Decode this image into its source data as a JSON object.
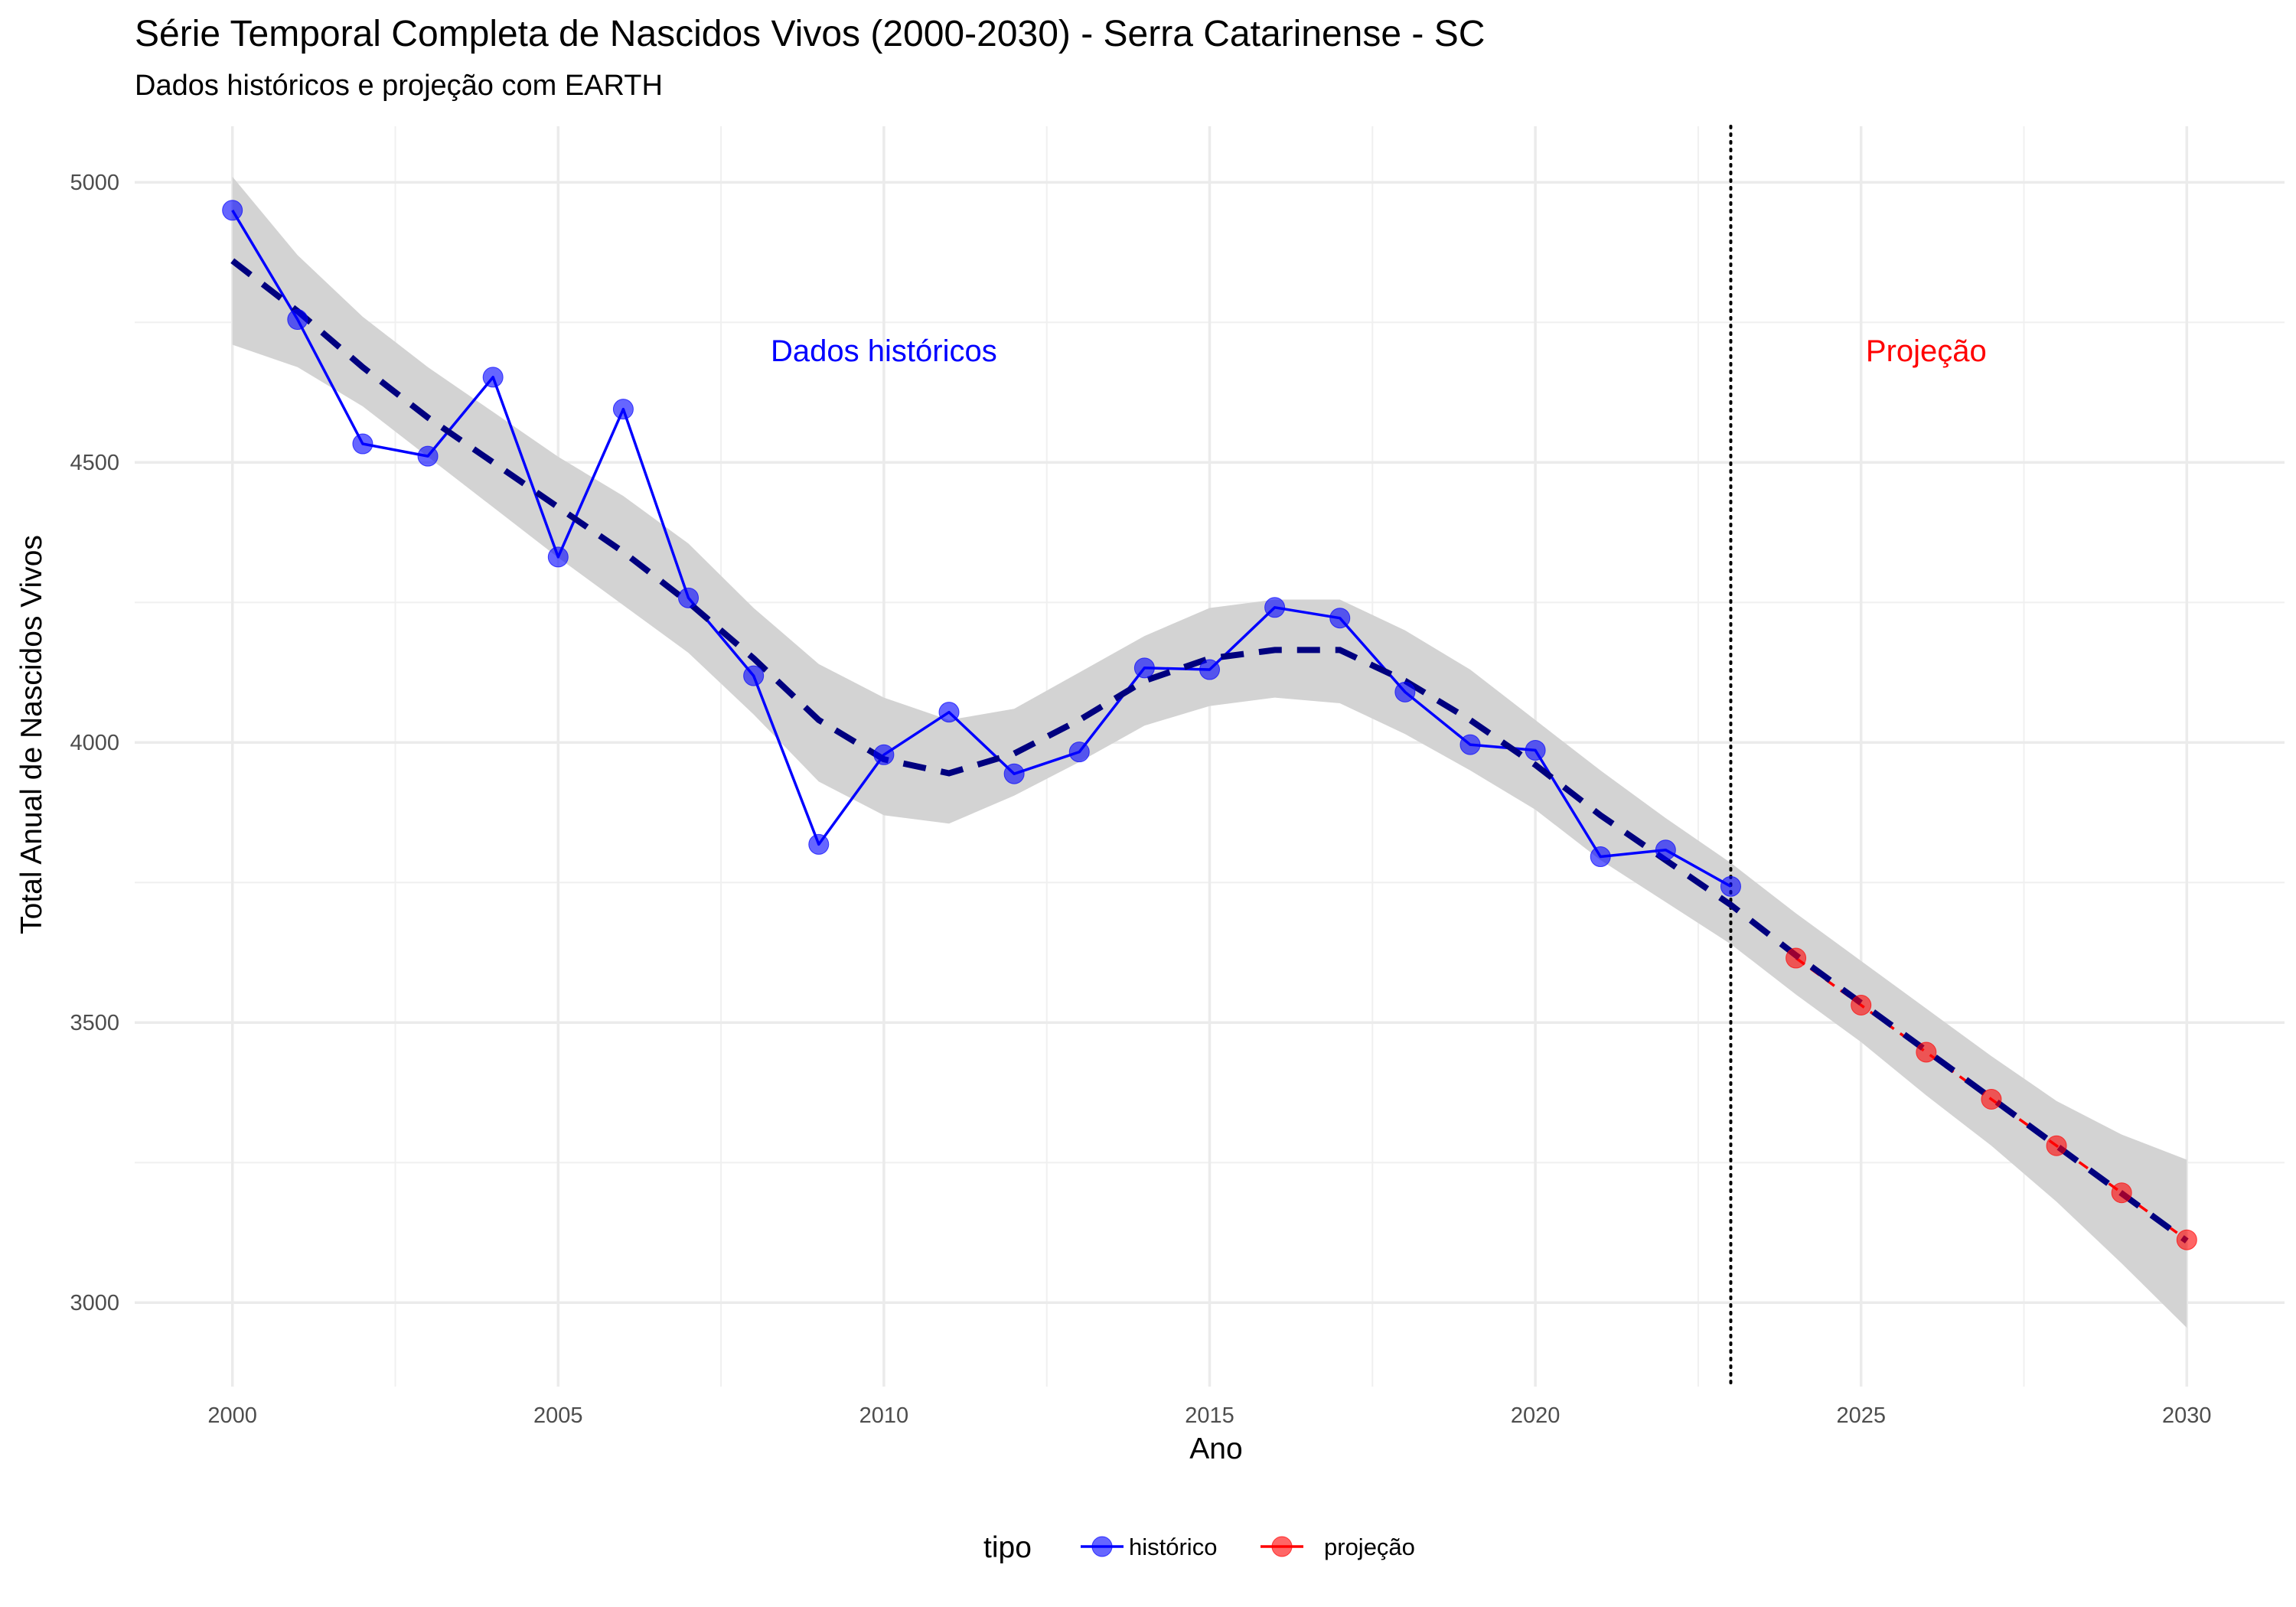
{
  "chart_data": {
    "type": "line",
    "title": "Série Temporal Completa de Nascidos Vivos (2000-2030) -  Serra Catarinense - SC",
    "subtitle": "Dados históricos e projeção com EARTH",
    "xlabel": "Ano",
    "ylabel": "Total Anual de Nascidos Vivos",
    "xlim": [
      1998.5,
      2031.5
    ],
    "ylim": [
      2850,
      5100
    ],
    "x_ticks": [
      2000,
      2005,
      2010,
      2015,
      2020,
      2025,
      2030
    ],
    "y_ticks": [
      3000,
      3500,
      4000,
      4500,
      5000
    ],
    "grid": true,
    "legend": {
      "title": "tipo",
      "position": "bottom",
      "entries": [
        {
          "label": "histórico",
          "color": "#0000ff"
        },
        {
          "label": "projeção",
          "color": "#ff0000"
        }
      ]
    },
    "series": [
      {
        "name": "histórico",
        "color": "#0000ff",
        "x": [
          2000,
          2001,
          2002,
          2003,
          2004,
          2005,
          2006,
          2007,
          2008,
          2009,
          2010,
          2011,
          2012,
          2013,
          2014,
          2015,
          2016,
          2017,
          2018,
          2019,
          2020,
          2021,
          2022,
          2023
        ],
        "y": [
          4950,
          4755,
          4533,
          4511,
          4652,
          4331,
          4595,
          4258,
          4119,
          3818,
          3978,
          4054,
          3944,
          3983,
          4133,
          4130,
          4241,
          4222,
          4090,
          3996,
          3986,
          3796,
          3808,
          3743
        ]
      },
      {
        "name": "projeção",
        "color": "#ff0000",
        "x": [
          2024,
          2025,
          2026,
          2027,
          2028,
          2029,
          2030
        ],
        "y": [
          3615,
          3531,
          3447,
          3363,
          3280,
          3196,
          3112
        ]
      }
    ],
    "trend": {
      "color": "#00007f",
      "band_color": "#d3d3d3",
      "x": [
        2000,
        2001,
        2002,
        2003,
        2004,
        2005,
        2006,
        2007,
        2008,
        2009,
        2010,
        2011,
        2012,
        2013,
        2014,
        2015,
        2016,
        2017,
        2018,
        2019,
        2020,
        2021,
        2022,
        2023,
        2024,
        2025,
        2026,
        2027,
        2028,
        2029,
        2030
      ],
      "y": [
        4860,
        4770,
        4670,
        4580,
        4500,
        4420,
        4340,
        4250,
        4150,
        4040,
        3970,
        3945,
        3980,
        4040,
        4110,
        4150,
        4165,
        4165,
        4110,
        4040,
        3960,
        3870,
        3790,
        3710,
        3620,
        3535,
        3450,
        3365,
        3280,
        3195,
        3110
      ],
      "lower": [
        4710,
        4670,
        4600,
        4510,
        4420,
        4330,
        4245,
        4160,
        4050,
        3930,
        3870,
        3855,
        3905,
        3965,
        4030,
        4065,
        4080,
        4070,
        4015,
        3950,
        3880,
        3790,
        3715,
        3640,
        3550,
        3465,
        3370,
        3280,
        3180,
        3070,
        2955
      ],
      "upper": [
        5010,
        4870,
        4760,
        4670,
        4590,
        4510,
        4440,
        4355,
        4240,
        4140,
        4080,
        4040,
        4060,
        4125,
        4190,
        4240,
        4255,
        4255,
        4200,
        4130,
        4040,
        3950,
        3865,
        3785,
        3695,
        3610,
        3525,
        3440,
        3360,
        3300,
        3255
      ]
    },
    "reference_line": {
      "x": 2023,
      "style": "dotted"
    },
    "annotations": [
      {
        "text": "Dados históricos",
        "x": 2010,
        "y": 4700,
        "color": "#0000ff"
      },
      {
        "text": "Projeção",
        "x": 2026,
        "y": 4700,
        "color": "#ff0000"
      }
    ]
  }
}
